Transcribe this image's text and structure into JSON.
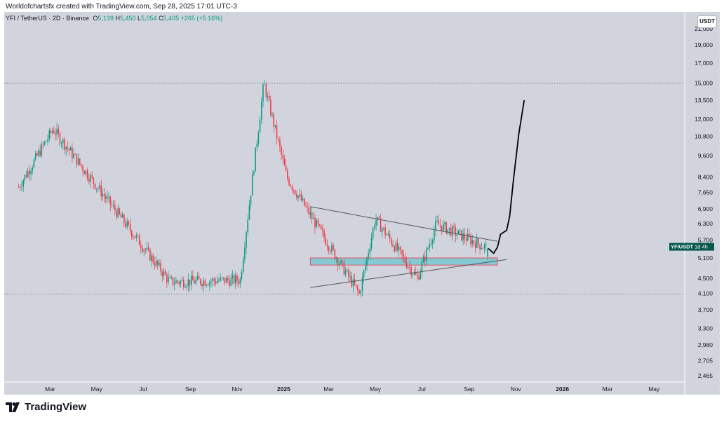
{
  "header": {
    "attribution": "Worldofchartsfx created with TradingView.com, Sep 28, 2025 17:01 UTC-3"
  },
  "legend": {
    "symbol": "YFI / TetherUS · 2D · Binance",
    "open_label": "O",
    "open": "5,139",
    "high_label": "H",
    "high": "5,450",
    "low_label": "L",
    "low": "5,054",
    "close_label": "C",
    "close": "5,405",
    "change": "+265 (+5.16%)"
  },
  "unit_button": "USDT",
  "price_tag": {
    "symbol": "YFIUSDT",
    "interval": "1d 4h"
  },
  "footer": {
    "brand": "TradingView"
  },
  "colors": {
    "up": "#089981",
    "down": "#f23645",
    "zone": "#6cc6cf",
    "background": "#d1d4dc",
    "line": "#000000",
    "trend": "#555555"
  },
  "chart_data": {
    "type": "candlestick",
    "scale": "log",
    "y_ticks": [
      "21,000",
      "19,000",
      "17,000",
      "15,000",
      "13,500",
      "12,000",
      "10,800",
      "9,600",
      "8,400",
      "7,650",
      "6,900",
      "6,300",
      "5,700",
      "5,100",
      "4,500",
      "4,100",
      "3,700",
      "3,300",
      "2,980",
      "2,705",
      "2,465"
    ],
    "x_ticks": [
      "Mar",
      "May",
      "Jul",
      "Sep",
      "Nov",
      "2025",
      "Mar",
      "May",
      "Jul",
      "Sep",
      "Nov",
      "2026",
      "Mar",
      "May"
    ],
    "x_tick_dates": [
      "2024-03-01",
      "2024-05-01",
      "2024-07-01",
      "2024-09-01",
      "2024-11-01",
      "2025-01-01",
      "2025-03-01",
      "2025-05-01",
      "2025-07-01",
      "2025-09-01",
      "2025-11-01",
      "2026-01-01",
      "2026-03-01",
      "2026-05-01"
    ],
    "current_price": 5405,
    "horizontal_levels": [
      15000,
      4080
    ],
    "key_points": [
      {
        "date": "2024-01-20",
        "price": 7900
      },
      {
        "date": "2024-03-05",
        "price": 11300
      },
      {
        "date": "2024-08-05",
        "price": 4400
      },
      {
        "date": "2024-11-05",
        "price": 4450
      },
      {
        "date": "2024-12-06",
        "price": 15000
      },
      {
        "date": "2025-01-05",
        "price": 8400
      },
      {
        "date": "2025-04-10",
        "price": 4080
      },
      {
        "date": "2025-05-01",
        "price": 6500
      },
      {
        "date": "2025-06-25",
        "price": 4500
      },
      {
        "date": "2025-07-20",
        "price": 6300
      },
      {
        "date": "2025-09-26",
        "price": 5405
      }
    ],
    "annotations": {
      "support_zone": {
        "date_start": "2025-02-05",
        "date_end": "2025-10-08",
        "price_low": 4880,
        "price_high": 5100
      },
      "upper_trendline": [
        {
          "date": "2025-02-05",
          "price": 7000
        },
        {
          "date": "2025-10-08",
          "price": 5650
        }
      ],
      "lower_trendline": [
        {
          "date": "2025-02-05",
          "price": 4250
        },
        {
          "date": "2025-10-20",
          "price": 5050
        }
      ],
      "projection_path": [
        {
          "date": "2025-09-26",
          "price": 5405
        },
        {
          "date": "2025-10-03",
          "price": 5250
        },
        {
          "date": "2025-10-08",
          "price": 5450
        },
        {
          "date": "2025-10-12",
          "price": 5900
        },
        {
          "date": "2025-10-20",
          "price": 6050
        },
        {
          "date": "2025-10-24",
          "price": 6600
        },
        {
          "date": "2025-10-29",
          "price": 8300
        },
        {
          "date": "2025-11-05",
          "price": 11000
        },
        {
          "date": "2025-11-12",
          "price": 13500
        }
      ]
    }
  }
}
